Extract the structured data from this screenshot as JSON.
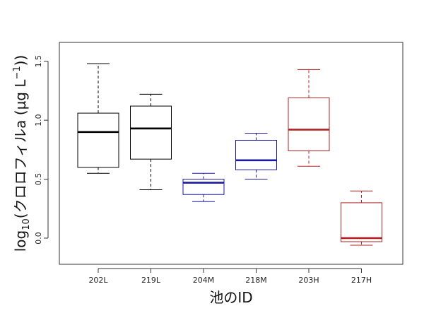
{
  "chart_data": {
    "type": "box",
    "xlabel": "池のID",
    "ylabel_prefix": "log",
    "ylabel_sub": "10",
    "ylabel_mid": "(クロロフィルa (µg L",
    "ylabel_sup": "−1",
    "ylabel_end": "))",
    "ylim": [
      -0.15,
      1.6
    ],
    "yticks": [
      "0.0",
      "0.5",
      "1.0",
      "1.5"
    ],
    "ytick_values": [
      0.0,
      0.5,
      1.0,
      1.5
    ],
    "categories": [
      "202L",
      "219L",
      "204M",
      "218M",
      "203H",
      "217H"
    ],
    "boxes": [
      {
        "label": "202L",
        "whisker_low": 0.55,
        "q1": 0.6,
        "median": 0.9,
        "q3": 1.06,
        "whisker_high": 1.48,
        "color": "#000000"
      },
      {
        "label": "219L",
        "whisker_low": 0.41,
        "q1": 0.67,
        "median": 0.93,
        "q3": 1.12,
        "whisker_high": 1.22,
        "color": "#000000"
      },
      {
        "label": "204M",
        "whisker_low": 0.31,
        "q1": 0.37,
        "median": 0.47,
        "q3": 0.5,
        "whisker_high": 0.55,
        "color": "#1a1aa0"
      },
      {
        "label": "218M",
        "whisker_low": 0.5,
        "q1": 0.58,
        "median": 0.66,
        "q3": 0.83,
        "whisker_high": 0.89,
        "color": "#1a1aa0"
      },
      {
        "label": "203H",
        "whisker_low": 0.61,
        "q1": 0.74,
        "median": 0.92,
        "q3": 1.19,
        "whisker_high": 1.43,
        "color": "#b22222"
      },
      {
        "label": "217H",
        "whisker_low": -0.06,
        "q1": -0.03,
        "median": 0.0,
        "q3": 0.3,
        "whisker_high": 0.4,
        "color": "#b22222"
      }
    ],
    "grid": false,
    "legend": "none"
  }
}
